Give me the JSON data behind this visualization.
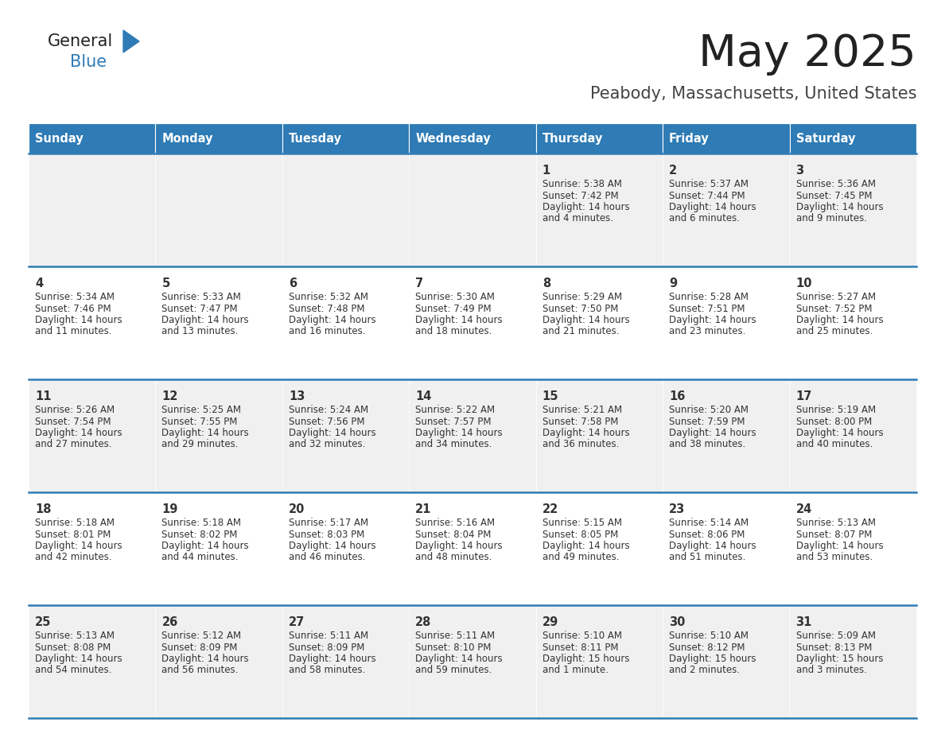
{
  "title": "May 2025",
  "subtitle": "Peabody, Massachusetts, United States",
  "days_of_week": [
    "Sunday",
    "Monday",
    "Tuesday",
    "Wednesday",
    "Thursday",
    "Friday",
    "Saturday"
  ],
  "header_bg": "#2E7BB5",
  "header_text": "#FFFFFF",
  "row_bg_odd": "#F0F0F0",
  "row_bg_even": "#FFFFFF",
  "cell_border": "#2E7BB5",
  "day_num_color": "#333333",
  "info_text_color": "#333333",
  "title_color": "#222222",
  "subtitle_color": "#444444",
  "logo_general_color": "#222222",
  "logo_blue_color": "#2E7BB5",
  "logo_triangle_color": "#2E7BB5",
  "calendar_data": [
    [
      null,
      null,
      null,
      null,
      {
        "day": 1,
        "sunrise": "5:38 AM",
        "sunset": "7:42 PM",
        "daylight": "14 hours and 4 minutes."
      },
      {
        "day": 2,
        "sunrise": "5:37 AM",
        "sunset": "7:44 PM",
        "daylight": "14 hours and 6 minutes."
      },
      {
        "day": 3,
        "sunrise": "5:36 AM",
        "sunset": "7:45 PM",
        "daylight": "14 hours and 9 minutes."
      }
    ],
    [
      {
        "day": 4,
        "sunrise": "5:34 AM",
        "sunset": "7:46 PM",
        "daylight": "14 hours and 11 minutes."
      },
      {
        "day": 5,
        "sunrise": "5:33 AM",
        "sunset": "7:47 PM",
        "daylight": "14 hours and 13 minutes."
      },
      {
        "day": 6,
        "sunrise": "5:32 AM",
        "sunset": "7:48 PM",
        "daylight": "14 hours and 16 minutes."
      },
      {
        "day": 7,
        "sunrise": "5:30 AM",
        "sunset": "7:49 PM",
        "daylight": "14 hours and 18 minutes."
      },
      {
        "day": 8,
        "sunrise": "5:29 AM",
        "sunset": "7:50 PM",
        "daylight": "14 hours and 21 minutes."
      },
      {
        "day": 9,
        "sunrise": "5:28 AM",
        "sunset": "7:51 PM",
        "daylight": "14 hours and 23 minutes."
      },
      {
        "day": 10,
        "sunrise": "5:27 AM",
        "sunset": "7:52 PM",
        "daylight": "14 hours and 25 minutes."
      }
    ],
    [
      {
        "day": 11,
        "sunrise": "5:26 AM",
        "sunset": "7:54 PM",
        "daylight": "14 hours and 27 minutes."
      },
      {
        "day": 12,
        "sunrise": "5:25 AM",
        "sunset": "7:55 PM",
        "daylight": "14 hours and 29 minutes."
      },
      {
        "day": 13,
        "sunrise": "5:24 AM",
        "sunset": "7:56 PM",
        "daylight": "14 hours and 32 minutes."
      },
      {
        "day": 14,
        "sunrise": "5:22 AM",
        "sunset": "7:57 PM",
        "daylight": "14 hours and 34 minutes."
      },
      {
        "day": 15,
        "sunrise": "5:21 AM",
        "sunset": "7:58 PM",
        "daylight": "14 hours and 36 minutes."
      },
      {
        "day": 16,
        "sunrise": "5:20 AM",
        "sunset": "7:59 PM",
        "daylight": "14 hours and 38 minutes."
      },
      {
        "day": 17,
        "sunrise": "5:19 AM",
        "sunset": "8:00 PM",
        "daylight": "14 hours and 40 minutes."
      }
    ],
    [
      {
        "day": 18,
        "sunrise": "5:18 AM",
        "sunset": "8:01 PM",
        "daylight": "14 hours and 42 minutes."
      },
      {
        "day": 19,
        "sunrise": "5:18 AM",
        "sunset": "8:02 PM",
        "daylight": "14 hours and 44 minutes."
      },
      {
        "day": 20,
        "sunrise": "5:17 AM",
        "sunset": "8:03 PM",
        "daylight": "14 hours and 46 minutes."
      },
      {
        "day": 21,
        "sunrise": "5:16 AM",
        "sunset": "8:04 PM",
        "daylight": "14 hours and 48 minutes."
      },
      {
        "day": 22,
        "sunrise": "5:15 AM",
        "sunset": "8:05 PM",
        "daylight": "14 hours and 49 minutes."
      },
      {
        "day": 23,
        "sunrise": "5:14 AM",
        "sunset": "8:06 PM",
        "daylight": "14 hours and 51 minutes."
      },
      {
        "day": 24,
        "sunrise": "5:13 AM",
        "sunset": "8:07 PM",
        "daylight": "14 hours and 53 minutes."
      }
    ],
    [
      {
        "day": 25,
        "sunrise": "5:13 AM",
        "sunset": "8:08 PM",
        "daylight": "14 hours and 54 minutes."
      },
      {
        "day": 26,
        "sunrise": "5:12 AM",
        "sunset": "8:09 PM",
        "daylight": "14 hours and 56 minutes."
      },
      {
        "day": 27,
        "sunrise": "5:11 AM",
        "sunset": "8:09 PM",
        "daylight": "14 hours and 58 minutes."
      },
      {
        "day": 28,
        "sunrise": "5:11 AM",
        "sunset": "8:10 PM",
        "daylight": "14 hours and 59 minutes."
      },
      {
        "day": 29,
        "sunrise": "5:10 AM",
        "sunset": "8:11 PM",
        "daylight": "15 hours and 1 minute."
      },
      {
        "day": 30,
        "sunrise": "5:10 AM",
        "sunset": "8:12 PM",
        "daylight": "15 hours and 2 minutes."
      },
      {
        "day": 31,
        "sunrise": "5:09 AM",
        "sunset": "8:13 PM",
        "daylight": "15 hours and 3 minutes."
      }
    ]
  ]
}
